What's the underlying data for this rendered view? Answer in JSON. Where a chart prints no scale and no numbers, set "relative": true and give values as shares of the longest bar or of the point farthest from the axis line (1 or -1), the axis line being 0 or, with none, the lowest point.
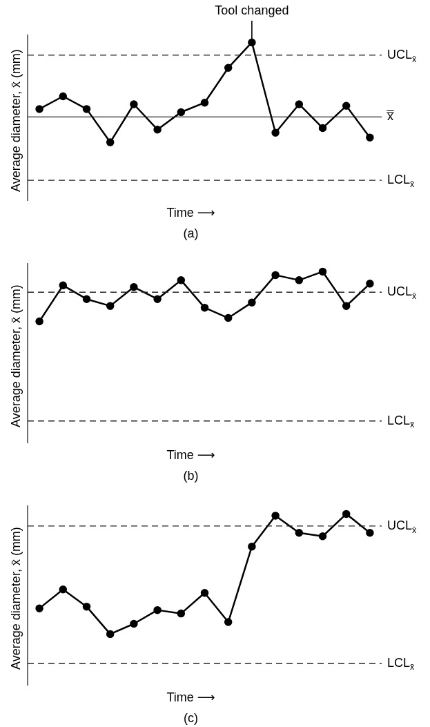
{
  "chart_data": [
    {
      "type": "line",
      "relative": true,
      "ylabel": "Average diameter, x̄ (mm)",
      "xlabel": "Time ⟶",
      "categories": [
        null,
        null,
        null,
        null,
        null,
        null,
        null,
        null,
        null,
        null,
        null,
        null,
        null,
        null,
        null
      ],
      "values": [
        0.58,
        0.66,
        0.58,
        0.37,
        0.61,
        0.45,
        0.56,
        0.62,
        0.84,
        1,
        0.43,
        0.61,
        0.46,
        0.6,
        0.4
      ],
      "color": "#000000",
      "marker": "circle",
      "line_style": "solid",
      "legend": false,
      "ref_lines": [
        {
          "axis": "y",
          "value": 0.92,
          "label": "UCL$_{x̄}$",
          "line_style": "dashed",
          "color": "#222222"
        },
        {
          "axis": "y",
          "value": 0.53,
          "label": "x̿",
          "line_style": "solid",
          "color": "#222222"
        },
        {
          "axis": "y",
          "value": 0.13,
          "label": "LCL$_{x̄}$",
          "line_style": "dashed",
          "color": "#222222"
        }
      ],
      "annotations": [
        "Tool changed",
        "(a)"
      ]
    },
    {
      "type": "line",
      "relative": true,
      "ylabel": "Average diameter, x̄ (mm)",
      "xlabel": "Time ⟶",
      "categories": [
        null,
        null,
        null,
        null,
        null,
        null,
        null,
        null,
        null,
        null,
        null,
        null,
        null,
        null,
        null
      ],
      "values": [
        0.71,
        0.92,
        0.84,
        0.8,
        0.91,
        0.84,
        0.95,
        0.79,
        0.73,
        0.82,
        0.98,
        0.95,
        1,
        0.8,
        0.93
      ],
      "color": "#000000",
      "marker": "circle",
      "line_style": "solid",
      "legend": false,
      "ref_lines": [
        {
          "axis": "y",
          "value": 0.88,
          "label": "UCL$_{x̄}$",
          "line_style": "dashed",
          "color": "#222222"
        },
        {
          "axis": "y",
          "value": 0.13,
          "label": "LCL$_{x̄}$",
          "line_style": "dashed",
          "color": "#222222"
        }
      ],
      "annotations": [
        "(b)"
      ]
    },
    {
      "type": "line",
      "relative": true,
      "ylabel": "Average diameter, x̄ (mm)",
      "xlabel": "Time ⟶",
      "categories": [
        null,
        null,
        null,
        null,
        null,
        null,
        null,
        null,
        null,
        null,
        null,
        null,
        null,
        null,
        null
      ],
      "values": [
        0.45,
        0.56,
        0.46,
        0.3,
        0.36,
        0.44,
        0.42,
        0.54,
        0.37,
        0.81,
        0.99,
        0.89,
        0.87,
        1,
        0.89
      ],
      "color": "#000000",
      "marker": "circle",
      "line_style": "solid",
      "legend": false,
      "ref_lines": [
        {
          "axis": "y",
          "value": 0.93,
          "label": "UCL$_{x̄}$",
          "line_style": "dashed",
          "color": "#222222"
        },
        {
          "axis": "y",
          "value": 0.13,
          "label": "LCL$_{x̄}$",
          "line_style": "dashed",
          "color": "#222222"
        }
      ],
      "annotations": [
        "(c)"
      ]
    }
  ]
}
